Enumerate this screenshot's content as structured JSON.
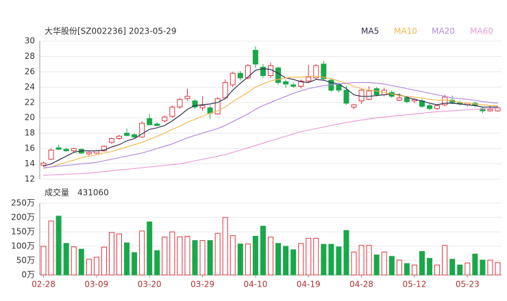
{
  "chart_data": [
    {
      "type": "candlestick",
      "title": "大华股份[SZ002236] 2023-05-29",
      "up_color": "#e0313c",
      "down_color": "#18a84a",
      "ylim": [
        12,
        30
      ],
      "yticks": [
        12,
        14,
        16,
        18,
        20,
        22,
        24,
        26,
        28,
        30
      ],
      "grid": true,
      "open": [
        13.8,
        14.6,
        16.1,
        15.9,
        15.7,
        15.9,
        15.3,
        15.4,
        15.7,
        16.8,
        17.3,
        18.0,
        17.8,
        17.5,
        19.9,
        19.2,
        19.6,
        20.2,
        21.4,
        22.5,
        22.2,
        21.3,
        21.3,
        20.5,
        22.6,
        24.3,
        25.8,
        25.2,
        28.8,
        26.6,
        25.5,
        26.5,
        24.7,
        24.3,
        24.1,
        24.8,
        25.2,
        27.0,
        24.9,
        24.4,
        23.6,
        21.4,
        22.2,
        22.4,
        23.8,
        23.0,
        23.3,
        22.3,
        22.6,
        22.2,
        22.2,
        21.6,
        21.2,
        21.7,
        22.3,
        22.0,
        21.7,
        21.9,
        21.2,
        20.9,
        20.9
      ],
      "high": [
        14.3,
        16.0,
        16.5,
        16.1,
        16.1,
        16.0,
        15.6,
        15.8,
        16.4,
        17.4,
        17.8,
        18.6,
        18.0,
        19.5,
        20.5,
        19.4,
        20.3,
        21.6,
        22.6,
        23.8,
        22.4,
        22.8,
        21.6,
        22.7,
        25.0,
        26.0,
        26.1,
        27.0,
        29.3,
        27.0,
        27.2,
        26.7,
        25.0,
        24.6,
        25.0,
        26.9,
        27.0,
        27.4,
        25.1,
        24.6,
        24.2,
        21.8,
        23.8,
        24.1,
        24.0,
        23.9,
        23.6,
        23.2,
        22.8,
        22.6,
        22.5,
        21.8,
        21.8,
        23.0,
        22.9,
        22.2,
        22.0,
        22.1,
        21.4,
        21.6,
        21.5
      ],
      "low": [
        13.6,
        14.5,
        15.8,
        15.6,
        15.5,
        15.3,
        15.1,
        15.3,
        15.6,
        16.6,
        17.1,
        17.6,
        17.4,
        17.4,
        19.0,
        18.9,
        19.4,
        20.0,
        21.2,
        22.2,
        21.2,
        20.9,
        19.9,
        20.4,
        22.5,
        24.0,
        24.9,
        25.0,
        26.5,
        25.2,
        25.2,
        24.3,
        23.9,
        23.9,
        23.8,
        24.6,
        25.0,
        24.9,
        23.4,
        23.3,
        21.7,
        21.1,
        21.8,
        22.3,
        22.8,
        22.8,
        22.6,
        22.2,
        21.9,
        21.9,
        21.3,
        21.0,
        21.0,
        21.5,
        21.8,
        21.6,
        21.5,
        21.4,
        20.6,
        20.8,
        20.8
      ],
      "close": [
        14.1,
        15.8,
        15.9,
        15.7,
        16.0,
        15.4,
        15.5,
        15.7,
        16.3,
        17.3,
        17.6,
        17.7,
        17.5,
        19.3,
        19.1,
        19.0,
        20.1,
        21.4,
        22.4,
        22.8,
        21.4,
        21.6,
        20.6,
        22.5,
        24.6,
        25.8,
        25.2,
        26.8,
        27.0,
        25.5,
        26.8,
        24.6,
        24.4,
        24.1,
        24.8,
        25.3,
        26.8,
        25.1,
        23.6,
        23.6,
        21.9,
        21.7,
        23.6,
        23.5,
        23.0,
        23.6,
        22.8,
        22.6,
        22.1,
        22.4,
        21.5,
        21.2,
        21.6,
        22.7,
        22.0,
        21.8,
        21.9,
        21.6,
        20.9,
        21.1,
        21.3
      ],
      "series": [
        {
          "name": "MA5",
          "color": "#2e2e4e",
          "values": [
            13.7,
            14.0,
            14.5,
            15.0,
            15.5,
            15.7,
            15.7,
            15.7,
            15.8,
            16.2,
            16.5,
            17.0,
            17.3,
            17.9,
            18.5,
            18.7,
            19.0,
            19.6,
            20.3,
            21.1,
            21.6,
            21.7,
            21.8,
            22.0,
            22.5,
            23.6,
            24.5,
            25.3,
            26.2,
            26.4,
            26.3,
            25.8,
            25.2,
            25.0,
            24.7,
            24.6,
            25.0,
            24.9,
            24.6,
            24.4,
            23.8,
            23.0,
            22.8,
            22.8,
            22.9,
            23.0,
            23.1,
            23.0,
            22.7,
            22.4,
            22.2,
            21.9,
            21.7,
            21.9,
            21.9,
            21.8,
            21.7,
            21.6,
            21.4,
            21.4,
            21.4
          ]
        },
        {
          "name": "MA10",
          "color": "#f2b84b",
          "values": [
            13.4,
            13.6,
            13.9,
            14.2,
            14.5,
            14.8,
            15.0,
            15.2,
            15.4,
            15.6,
            15.9,
            16.2,
            16.5,
            16.8,
            17.2,
            17.6,
            18.0,
            18.5,
            18.9,
            19.4,
            19.8,
            20.2,
            20.6,
            20.9,
            21.4,
            22.1,
            22.7,
            23.3,
            24.0,
            24.4,
            24.8,
            25.0,
            25.2,
            25.3,
            25.3,
            25.4,
            25.4,
            25.3,
            25.1,
            24.8,
            24.5,
            24.1,
            23.8,
            23.6,
            23.5,
            23.3,
            23.1,
            22.9,
            22.8,
            22.7,
            22.6,
            22.4,
            22.3,
            22.3,
            22.2,
            22.0,
            21.9,
            21.8,
            21.7,
            21.6,
            21.6
          ]
        },
        {
          "name": "MA20",
          "color": "#b389e0",
          "values": [
            13.5,
            13.6,
            13.7,
            13.8,
            13.9,
            14.0,
            14.1,
            14.2,
            14.4,
            14.6,
            14.8,
            15.0,
            15.2,
            15.4,
            15.7,
            16.0,
            16.3,
            16.6,
            17.0,
            17.4,
            17.7,
            18.0,
            18.3,
            18.6,
            19.0,
            19.5,
            20.0,
            20.5,
            21.1,
            21.6,
            22.0,
            22.4,
            22.8,
            23.2,
            23.5,
            23.8,
            24.0,
            24.2,
            24.3,
            24.4,
            24.5,
            24.6,
            24.6,
            24.6,
            24.5,
            24.4,
            24.2,
            24.0,
            23.8,
            23.6,
            23.4,
            23.2,
            23.0,
            22.8,
            22.6,
            22.5,
            22.4,
            22.3,
            22.1,
            22.0,
            21.9
          ]
        },
        {
          "name": "MA60",
          "color": "#eb9cd6",
          "values": [
            12.5,
            12.55,
            12.6,
            12.65,
            12.7,
            12.75,
            12.8,
            12.9,
            13.0,
            13.1,
            13.2,
            13.3,
            13.4,
            13.5,
            13.6,
            13.7,
            13.8,
            13.9,
            14.0,
            14.2,
            14.4,
            14.6,
            14.8,
            15.0,
            15.2,
            15.5,
            15.8,
            16.1,
            16.4,
            16.7,
            17.0,
            17.3,
            17.6,
            17.9,
            18.2,
            18.4,
            18.6,
            18.8,
            19.0,
            19.2,
            19.4,
            19.55,
            19.7,
            19.85,
            20.0,
            20.1,
            20.2,
            20.3,
            20.4,
            20.5,
            20.6,
            20.7,
            20.8,
            20.85,
            20.9,
            21.0,
            21.05,
            21.1,
            21.15,
            21.2,
            21.3
          ]
        }
      ]
    },
    {
      "type": "bar",
      "title": "成交量",
      "latest": 431060,
      "categories": [
        "02-28",
        null,
        null,
        null,
        null,
        null,
        null,
        "03-09",
        null,
        null,
        null,
        null,
        null,
        null,
        "03-20",
        null,
        null,
        null,
        null,
        null,
        null,
        "03-29",
        null,
        null,
        null,
        null,
        null,
        null,
        "04-10",
        null,
        null,
        null,
        null,
        null,
        null,
        "04-19",
        null,
        null,
        null,
        null,
        null,
        null,
        "04-28",
        null,
        null,
        null,
        null,
        null,
        null,
        "05-12",
        null,
        null,
        null,
        null,
        null,
        null,
        "05-23",
        null,
        null,
        null,
        null
      ],
      "values": [
        100,
        188,
        205,
        110,
        98,
        90,
        55,
        62,
        97,
        148,
        143,
        112,
        78,
        153,
        185,
        85,
        132,
        150,
        133,
        135,
        120,
        120,
        120,
        145,
        200,
        137,
        108,
        108,
        135,
        170,
        132,
        110,
        100,
        88,
        110,
        128,
        128,
        107,
        107,
        98,
        155,
        80,
        103,
        103,
        70,
        80,
        65,
        52,
        40,
        35,
        82,
        58,
        35,
        103,
        55,
        35,
        42,
        73,
        52,
        52,
        43.106
      ],
      "ylim": [
        0,
        250
      ],
      "yticks": [
        {
          "value": 0,
          "label": "0万"
        },
        {
          "value": 50,
          "label": "50万"
        },
        {
          "value": 100,
          "label": "100万"
        },
        {
          "value": 150,
          "label": "150万"
        },
        {
          "value": 200,
          "label": "200万"
        },
        {
          "value": 250,
          "label": "250万"
        }
      ],
      "grid": true
    }
  ]
}
